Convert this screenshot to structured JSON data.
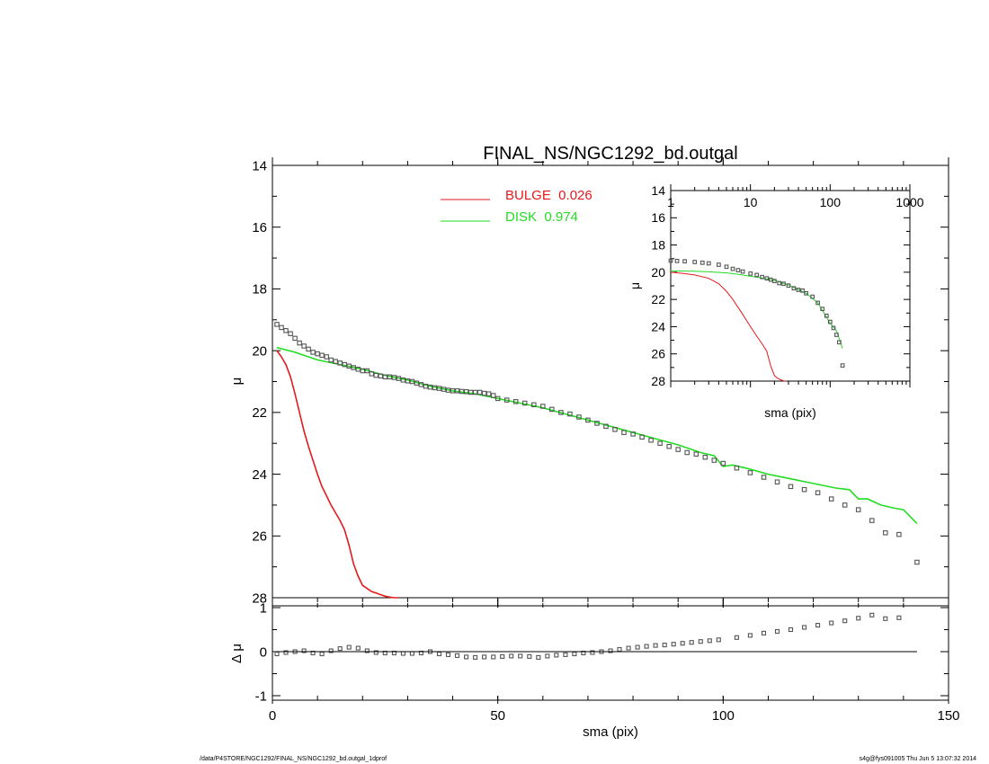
{
  "chart_data": [
    {
      "type": "scatter",
      "title": "FINAL_NS/NGC1292_bd.outgal",
      "xlabel": "",
      "ylabel": "μ",
      "xlim": [
        0,
        150
      ],
      "ylim": [
        28,
        14
      ],
      "yticks": [
        14,
        16,
        18,
        20,
        22,
        24,
        26,
        28
      ],
      "grid": false,
      "legend_position": "top-center",
      "colors": {
        "bulge": "#e31a1c",
        "disk": "#22dd22",
        "data": "#555555",
        "axes": "#000000"
      },
      "series": [
        {
          "name": "BULGE  0.026",
          "kind": "line",
          "color": "#e31a1c",
          "x": [
            1,
            2,
            3,
            4,
            5,
            6,
            7,
            8,
            9,
            10,
            11,
            12,
            13,
            14,
            15,
            16,
            17,
            18,
            19,
            20,
            21,
            22,
            23,
            24,
            25,
            26,
            27,
            28
          ],
          "y": [
            20.0,
            20.2,
            20.45,
            20.85,
            21.4,
            22.0,
            22.6,
            23.1,
            23.55,
            24.0,
            24.4,
            24.7,
            25.0,
            25.25,
            25.5,
            25.8,
            26.3,
            26.9,
            27.3,
            27.6,
            27.7,
            27.8,
            27.85,
            27.9,
            27.95,
            27.98,
            28.0,
            28.0
          ]
        },
        {
          "name": "DISK  0.974",
          "kind": "line",
          "color": "#22dd22",
          "x": [
            1,
            5,
            10,
            15,
            20,
            25,
            30,
            35,
            40,
            45,
            50,
            55,
            60,
            65,
            70,
            75,
            80,
            85,
            90,
            95,
            98,
            100,
            102,
            105,
            110,
            115,
            120,
            125,
            128,
            130,
            132,
            135,
            138,
            140,
            143
          ],
          "y": [
            19.9,
            20.05,
            20.3,
            20.45,
            20.6,
            20.8,
            20.95,
            21.15,
            21.3,
            21.4,
            21.55,
            21.7,
            21.85,
            22.05,
            22.25,
            22.45,
            22.65,
            22.85,
            23.05,
            23.3,
            23.4,
            23.75,
            23.7,
            23.8,
            24.0,
            24.15,
            24.3,
            24.45,
            24.5,
            24.8,
            24.8,
            25.0,
            25.1,
            25.15,
            25.6
          ]
        },
        {
          "name": "",
          "kind": "points",
          "color": "#555555",
          "x": [
            1,
            2,
            3,
            4,
            5,
            6,
            7,
            8,
            9,
            10,
            11,
            12,
            13,
            14,
            15,
            16,
            17,
            18,
            19,
            20,
            21,
            22,
            23,
            24,
            25,
            26,
            27,
            28,
            29,
            30,
            31,
            32,
            33,
            34,
            35,
            36,
            37,
            38,
            39,
            40,
            41,
            42,
            43,
            44,
            45,
            46,
            47,
            48,
            49,
            50,
            52,
            54,
            56,
            58,
            60,
            62,
            64,
            66,
            68,
            70,
            72,
            74,
            76,
            78,
            80,
            82,
            84,
            86,
            88,
            90,
            92,
            94,
            96,
            98,
            100,
            103,
            106,
            109,
            112,
            115,
            118,
            121,
            124,
            127,
            130,
            133,
            136,
            139,
            143
          ],
          "y": [
            19.15,
            19.25,
            19.35,
            19.45,
            19.6,
            19.75,
            19.85,
            19.95,
            20.05,
            20.1,
            20.15,
            20.2,
            20.3,
            20.35,
            20.4,
            20.45,
            20.5,
            20.55,
            20.6,
            20.65,
            20.65,
            20.75,
            20.8,
            20.82,
            20.85,
            20.85,
            20.87,
            20.9,
            20.95,
            20.98,
            21.0,
            21.05,
            21.1,
            21.15,
            21.18,
            21.2,
            21.22,
            21.25,
            21.28,
            21.3,
            21.3,
            21.32,
            21.33,
            21.35,
            21.35,
            21.35,
            21.38,
            21.4,
            21.45,
            21.55,
            21.6,
            21.65,
            21.7,
            21.75,
            21.8,
            21.9,
            22.0,
            22.05,
            22.15,
            22.25,
            22.35,
            22.45,
            22.55,
            22.65,
            22.7,
            22.8,
            22.9,
            23.0,
            23.1,
            23.2,
            23.3,
            23.35,
            23.45,
            23.55,
            23.65,
            23.8,
            23.95,
            24.1,
            24.25,
            24.4,
            24.5,
            24.6,
            24.8,
            25.0,
            25.15,
            25.5,
            25.9,
            25.95,
            26.85
          ]
        }
      ]
    },
    {
      "type": "scatter",
      "xlabel": "sma (pix)",
      "ylabel": "Δ μ",
      "xlim": [
        0,
        150
      ],
      "ylim": [
        -1,
        1
      ],
      "xticks": [
        0,
        50,
        100,
        150
      ],
      "yticks": [
        -1,
        0,
        1
      ],
      "grid": false,
      "series": [
        {
          "name": "",
          "kind": "points",
          "color": "#555555",
          "x": [
            1,
            3,
            5,
            7,
            9,
            11,
            13,
            15,
            17,
            19,
            21,
            23,
            25,
            27,
            29,
            31,
            33,
            35,
            37,
            39,
            41,
            43,
            45,
            47,
            49,
            51,
            53,
            55,
            57,
            59,
            61,
            63,
            65,
            67,
            69,
            71,
            73,
            75,
            77,
            79,
            81,
            83,
            85,
            87,
            89,
            91,
            93,
            95,
            97,
            99,
            103,
            106,
            109,
            112,
            115,
            118,
            121,
            124,
            127,
            130,
            133,
            136,
            139
          ],
          "y": [
            -0.05,
            -0.02,
            0.0,
            0.02,
            -0.03,
            -0.05,
            0.02,
            0.07,
            0.1,
            0.08,
            0.02,
            -0.02,
            -0.03,
            -0.03,
            -0.04,
            -0.04,
            -0.03,
            0.0,
            -0.05,
            -0.07,
            -0.09,
            -0.12,
            -0.13,
            -0.12,
            -0.12,
            -0.11,
            -0.1,
            -0.1,
            -0.11,
            -0.13,
            -0.1,
            -0.08,
            -0.07,
            -0.05,
            -0.03,
            -0.02,
            0.0,
            0.02,
            0.05,
            0.08,
            0.1,
            0.12,
            0.14,
            0.15,
            0.17,
            0.19,
            0.21,
            0.23,
            0.25,
            0.27,
            0.32,
            0.37,
            0.42,
            0.46,
            0.5,
            0.55,
            0.6,
            0.65,
            0.7,
            0.76,
            0.83,
            0.75,
            0.77
          ]
        },
        {
          "name": "",
          "kind": "reference-line",
          "color": "#000000",
          "x": [
            1,
            143
          ],
          "y": [
            0,
            0
          ]
        }
      ]
    },
    {
      "type": "scatter",
      "xlabel": "sma (pix)",
      "ylabel": "μ",
      "xscale": "log",
      "xlim": [
        1,
        1000
      ],
      "ylim": [
        28,
        14
      ],
      "xticks": [
        1,
        10,
        100,
        1000
      ],
      "yticks": [
        14,
        16,
        18,
        20,
        22,
        24,
        26,
        28
      ],
      "grid": false,
      "series": [
        {
          "name": "BULGE  0.026",
          "kind": "line",
          "color": "#e31a1c",
          "x": [
            1,
            1.5,
            2,
            3,
            4,
            5,
            6,
            8,
            10,
            12,
            14,
            16,
            18,
            20,
            22,
            24,
            26,
            28
          ],
          "y": [
            20.0,
            20.1,
            20.2,
            20.45,
            20.85,
            21.4,
            22.0,
            23.1,
            24.0,
            24.7,
            25.25,
            25.8,
            26.9,
            27.6,
            27.8,
            27.9,
            27.98,
            28.0
          ]
        },
        {
          "name": "DISK  0.974",
          "kind": "line",
          "color": "#22dd22",
          "x": [
            1,
            2,
            3,
            5,
            7,
            10,
            15,
            20,
            30,
            50,
            70,
            100,
            120,
            143
          ],
          "y": [
            19.9,
            19.93,
            19.97,
            20.05,
            20.15,
            20.3,
            20.45,
            20.6,
            20.95,
            21.55,
            22.25,
            23.75,
            24.3,
            25.6
          ]
        },
        {
          "name": "",
          "kind": "points",
          "color": "#555555",
          "x": [
            1,
            1.2,
            1.5,
            2,
            2.5,
            3,
            4,
            5,
            6,
            7,
            8,
            10,
            12,
            14,
            16,
            18,
            20,
            23,
            26,
            30,
            35,
            40,
            45,
            50,
            60,
            70,
            80,
            90,
            100,
            110,
            120,
            130,
            143
          ],
          "y": [
            19.15,
            19.17,
            19.2,
            19.25,
            19.3,
            19.35,
            19.45,
            19.6,
            19.75,
            19.85,
            19.95,
            20.1,
            20.2,
            20.35,
            20.45,
            20.55,
            20.65,
            20.8,
            20.85,
            20.98,
            21.18,
            21.3,
            21.35,
            21.55,
            21.8,
            22.25,
            22.7,
            23.2,
            23.65,
            24.1,
            24.6,
            25.15,
            26.85
          ]
        }
      ]
    }
  ],
  "footer": {
    "left": "/data/P4STORE/NGC1292/FINAL_NS/NGC1292_bd.outgal_1dprof",
    "right": "s4g@fys091005  Thu Jun  5 13:07:32 2014"
  }
}
